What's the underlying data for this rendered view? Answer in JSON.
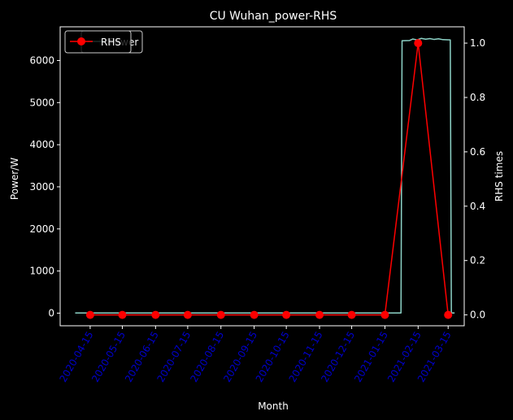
{
  "chart_data": {
    "type": "line",
    "title": "CU Wuhan_power-RHS",
    "xlabel": "Month",
    "ylabel_left": "Power/W",
    "ylabel_right": "RHS times",
    "xlim": [
      "2020-03-18",
      "2021-03-30"
    ],
    "ylim_left": [
      -300,
      6800
    ],
    "ylim_right": [
      -0.04,
      1.06
    ],
    "grid": false,
    "legend_position": "top-left",
    "x_ticks": [
      "2020-04-15",
      "2020-05-15",
      "2020-06-15",
      "2020-07-15",
      "2020-08-15",
      "2020-09-15",
      "2020-10-15",
      "2020-11-15",
      "2020-12-15",
      "2021-01-15",
      "2021-02-15",
      "2021-03-15"
    ],
    "y_ticks_left": [
      0,
      1000,
      2000,
      3000,
      4000,
      5000,
      6000
    ],
    "y_ticks_right": [
      0.0,
      0.2,
      0.4,
      0.6,
      0.8,
      1.0
    ],
    "series": [
      {
        "name": "Power",
        "axis": "left",
        "color": "#8dd3c7",
        "points": [
          {
            "x": "2020-04-01",
            "y": 5
          },
          {
            "x": "2020-06-01",
            "y": 5
          },
          {
            "x": "2020-08-01",
            "y": 5
          },
          {
            "x": "2020-10-01",
            "y": 5
          },
          {
            "x": "2020-12-01",
            "y": 5
          },
          {
            "x": "2021-01-30",
            "y": 5
          },
          {
            "x": "2021-01-31",
            "y": 6470
          },
          {
            "x": "2021-02-07",
            "y": 6475
          },
          {
            "x": "2021-02-10",
            "y": 6510
          },
          {
            "x": "2021-02-14",
            "y": 6490
          },
          {
            "x": "2021-02-18",
            "y": 6525
          },
          {
            "x": "2021-02-22",
            "y": 6505
          },
          {
            "x": "2021-02-26",
            "y": 6520
          },
          {
            "x": "2021-03-02",
            "y": 6500
          },
          {
            "x": "2021-03-06",
            "y": 6515
          },
          {
            "x": "2021-03-10",
            "y": 6495
          },
          {
            "x": "2021-03-17",
            "y": 6490
          },
          {
            "x": "2021-03-18",
            "y": 5
          },
          {
            "x": "2021-03-21",
            "y": 5
          }
        ]
      },
      {
        "name": "RHS",
        "axis": "right",
        "color": "#ff0000",
        "marker": "circle",
        "points": [
          {
            "x": "2020-04-15",
            "y": 0
          },
          {
            "x": "2020-05-15",
            "y": 0
          },
          {
            "x": "2020-06-15",
            "y": 0
          },
          {
            "x": "2020-07-15",
            "y": 0
          },
          {
            "x": "2020-08-15",
            "y": 0
          },
          {
            "x": "2020-09-15",
            "y": 0
          },
          {
            "x": "2020-10-15",
            "y": 0
          },
          {
            "x": "2020-11-15",
            "y": 0
          },
          {
            "x": "2020-12-15",
            "y": 0
          },
          {
            "x": "2021-01-15",
            "y": 0
          },
          {
            "x": "2021-02-15",
            "y": 1
          },
          {
            "x": "2021-03-15",
            "y": 0
          }
        ]
      }
    ],
    "legends": [
      {
        "label": "Power"
      },
      {
        "label": "RHS"
      }
    ]
  }
}
